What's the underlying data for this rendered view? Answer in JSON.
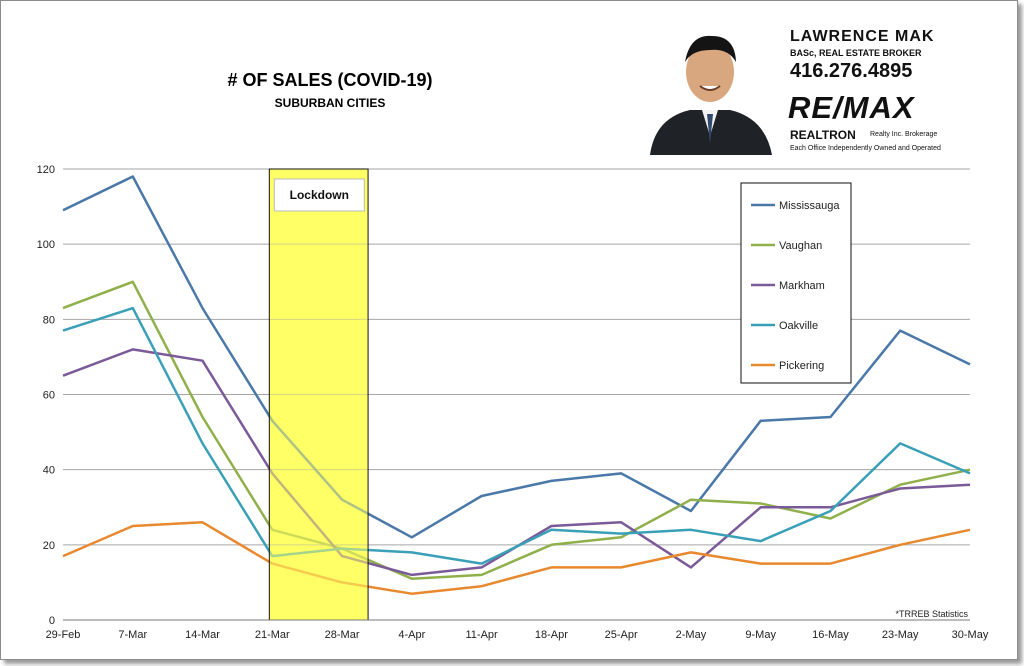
{
  "chart_data": {
    "type": "line",
    "title": "# OF SALES (COVID-19)",
    "subtitle": "SUBURBAN CITIES",
    "categories": [
      "29-Feb",
      "7-Mar",
      "14-Mar",
      "21-Mar",
      "28-Mar",
      "4-Apr",
      "11-Apr",
      "18-Apr",
      "25-Apr",
      "2-May",
      "9-May",
      "16-May",
      "23-May",
      "30-May"
    ],
    "ylim": [
      0,
      120
    ],
    "yticks": [
      0,
      20,
      40,
      60,
      80,
      100,
      120
    ],
    "grid": true,
    "legend_position": "top-right",
    "series": [
      {
        "name": "Mississauga",
        "color": "#4a78a8",
        "values": [
          109,
          118,
          83,
          53,
          32,
          22,
          33,
          37,
          39,
          29,
          53,
          54,
          77,
          68
        ]
      },
      {
        "name": "Vaughan",
        "color": "#8fb04a",
        "values": [
          83,
          90,
          54,
          24,
          19,
          11,
          12,
          20,
          22,
          32,
          31,
          27,
          36,
          40
        ]
      },
      {
        "name": "Markham",
        "color": "#7a5a98",
        "values": [
          65,
          72,
          69,
          39,
          17,
          12,
          14,
          25,
          26,
          14,
          30,
          30,
          35,
          36
        ]
      },
      {
        "name": "Oakville",
        "color": "#3aa0b8",
        "values": [
          77,
          83,
          47,
          17,
          19,
          18,
          15,
          24,
          23,
          24,
          21,
          29,
          47,
          39
        ]
      },
      {
        "name": "Pickering",
        "color": "#e8892f",
        "values": [
          17,
          25,
          26,
          15,
          10,
          7,
          9,
          14,
          14,
          18,
          15,
          15,
          20,
          24
        ]
      }
    ],
    "annotations": [
      {
        "text": "Lockdown",
        "span": [
          "21-Mar",
          "28-Mar"
        ],
        "color": "#ffff66"
      },
      {
        "text": "*TRREB Statistics"
      }
    ]
  },
  "promo": {
    "name": "LAWRENCE MAK",
    "credentials": "BASc, REAL ESTATE BROKER",
    "phone": "416.276.4895",
    "brand": "RE/MAX",
    "brokerage": "REALTRON",
    "brokerage_sub": "Realty Inc. Brokerage",
    "disclaimer": "Each Office Independently Owned and Operated"
  }
}
